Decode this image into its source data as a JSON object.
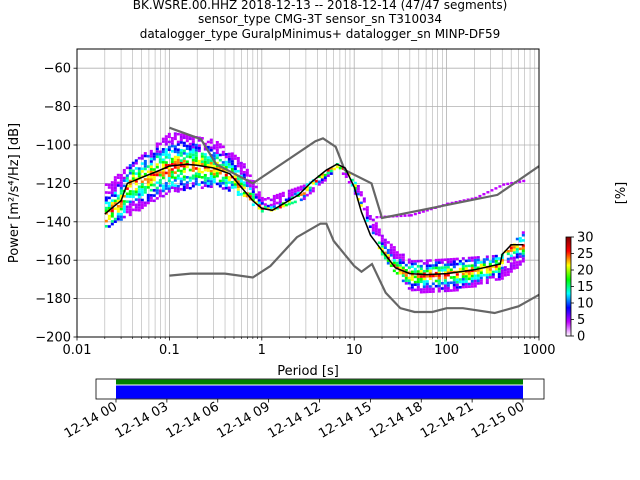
{
  "title_lines": [
    "BK.WSRE.00.HHZ   2018-12-13 -- 2018-12-14  (47/47 segments)",
    "sensor_type CMG-3T sensor_sn T310034",
    "datalogger_type GuralpMinimus+ datalogger_sn MINP-DF59"
  ],
  "chart_data": {
    "type": "heatmap",
    "xlabel": "Period [s]",
    "ylabel": "Power [m²/s⁴/Hz] [dB]",
    "xscale": "log",
    "xlim": [
      0.01,
      1000
    ],
    "ylim": [
      -200,
      -50
    ],
    "x_ticks": [
      {
        "value": 0.01,
        "label": "0.01"
      },
      {
        "value": 0.1,
        "label": "0.1"
      },
      {
        "value": 1,
        "label": "1"
      },
      {
        "value": 10,
        "label": "10"
      },
      {
        "value": 100,
        "label": "100"
      },
      {
        "value": 1000,
        "label": "1000"
      }
    ],
    "y_ticks": [
      {
        "value": -60,
        "label": "−60"
      },
      {
        "value": -80,
        "label": "−80"
      },
      {
        "value": -100,
        "label": "−100"
      },
      {
        "value": -120,
        "label": "−120"
      },
      {
        "value": -140,
        "label": "−140"
      },
      {
        "value": -160,
        "label": "−160"
      },
      {
        "value": -180,
        "label": "−180"
      },
      {
        "value": -200,
        "label": "−200"
      }
    ],
    "grid": true,
    "colorbar": {
      "label": "[%]",
      "range": [
        0,
        30
      ],
      "ticks": [
        "0",
        "5",
        "10",
        "15",
        "20",
        "25",
        "30"
      ],
      "colors": [
        "#ffffff",
        "#c000ff",
        "#0000ff",
        "#00ffff",
        "#00ff00",
        "#ffff00",
        "#ff0000",
        "#800000"
      ]
    },
    "noise_models": {
      "color": "#666666",
      "nhnm": [
        [
          0.1,
          -91
        ],
        [
          0.22,
          -97
        ],
        [
          0.32,
          -110
        ],
        [
          0.8,
          -120
        ],
        [
          3.8,
          -98
        ],
        [
          4.6,
          -96.5
        ],
        [
          6.3,
          -101
        ],
        [
          7.9,
          -113
        ],
        [
          15.4,
          -120
        ],
        [
          20,
          -138
        ],
        [
          354.8,
          -126
        ],
        [
          1000,
          -111
        ]
      ],
      "nlnm": [
        [
          0.1,
          -168
        ],
        [
          0.17,
          -167
        ],
        [
          0.4,
          -167
        ],
        [
          0.8,
          -169
        ],
        [
          1.24,
          -163
        ],
        [
          2.4,
          -148
        ],
        [
          4.3,
          -141
        ],
        [
          5,
          -141
        ],
        [
          6,
          -150
        ],
        [
          10,
          -163
        ],
        [
          12,
          -166
        ],
        [
          15.6,
          -162
        ],
        [
          21.9,
          -177
        ],
        [
          31.6,
          -185
        ],
        [
          45,
          -187
        ],
        [
          70,
          -187
        ],
        [
          100,
          -185
        ],
        [
          150,
          -185
        ],
        [
          331,
          -187.5
        ],
        [
          600,
          -184
        ],
        [
          1000,
          -178
        ]
      ]
    },
    "psd_mode": {
      "color": "#000000",
      "points": [
        [
          0.02,
          -136
        ],
        [
          0.025,
          -132
        ],
        [
          0.03,
          -129
        ],
        [
          0.035,
          -120
        ],
        [
          0.05,
          -117
        ],
        [
          0.08,
          -113
        ],
        [
          0.1,
          -111
        ],
        [
          0.15,
          -110
        ],
        [
          0.2,
          -110.5
        ],
        [
          0.3,
          -112
        ],
        [
          0.45,
          -115
        ],
        [
          0.6,
          -122
        ],
        [
          0.8,
          -129
        ],
        [
          1.0,
          -133
        ],
        [
          1.3,
          -134
        ],
        [
          1.8,
          -130
        ],
        [
          2.5,
          -126
        ],
        [
          3.5,
          -119
        ],
        [
          5,
          -113
        ],
        [
          6.5,
          -110
        ],
        [
          8,
          -112
        ],
        [
          10,
          -122
        ],
        [
          12,
          -135
        ],
        [
          15,
          -147
        ],
        [
          20,
          -155
        ],
        [
          28,
          -164
        ],
        [
          40,
          -167
        ],
        [
          60,
          -167.5
        ],
        [
          100,
          -167
        ],
        [
          200,
          -165
        ],
        [
          380,
          -162
        ],
        [
          400,
          -157
        ],
        [
          500,
          -152
        ],
        [
          680,
          -152
        ]
      ]
    },
    "psd_band": [
      {
        "x": [
          0.02,
          0.1,
          0.3,
          0.6,
          1.0,
          3,
          6.5,
          10,
          20,
          40,
          100,
          380,
          680
        ],
        "lower": [
          -143,
          -124,
          -121,
          -126,
          -135,
          -127,
          -111,
          -125,
          -158,
          -176,
          -176,
          -170,
          -160
        ],
        "upper": [
          -120,
          -93,
          -97,
          -108,
          -128,
          -120,
          -109,
          -118,
          -148,
          -160,
          -159,
          -157,
          -144
        ]
      }
    ],
    "psd_outliers": {
      "x": [
        17,
        40,
        100,
        200,
        400,
        680
      ],
      "y": [
        -137,
        -136,
        -130,
        -127,
        -120,
        -118
      ]
    }
  },
  "timeline": {
    "ticks": [
      "12-14 00",
      "12-14 03",
      "12-14 06",
      "12-14 09",
      "12-14 12",
      "12-14 15",
      "12-14 18",
      "12-14 21",
      "12-15 00"
    ],
    "bars": [
      {
        "name": "",
        "color": "#008000"
      },
      {
        "name": "",
        "color": "#0000ff"
      }
    ]
  }
}
